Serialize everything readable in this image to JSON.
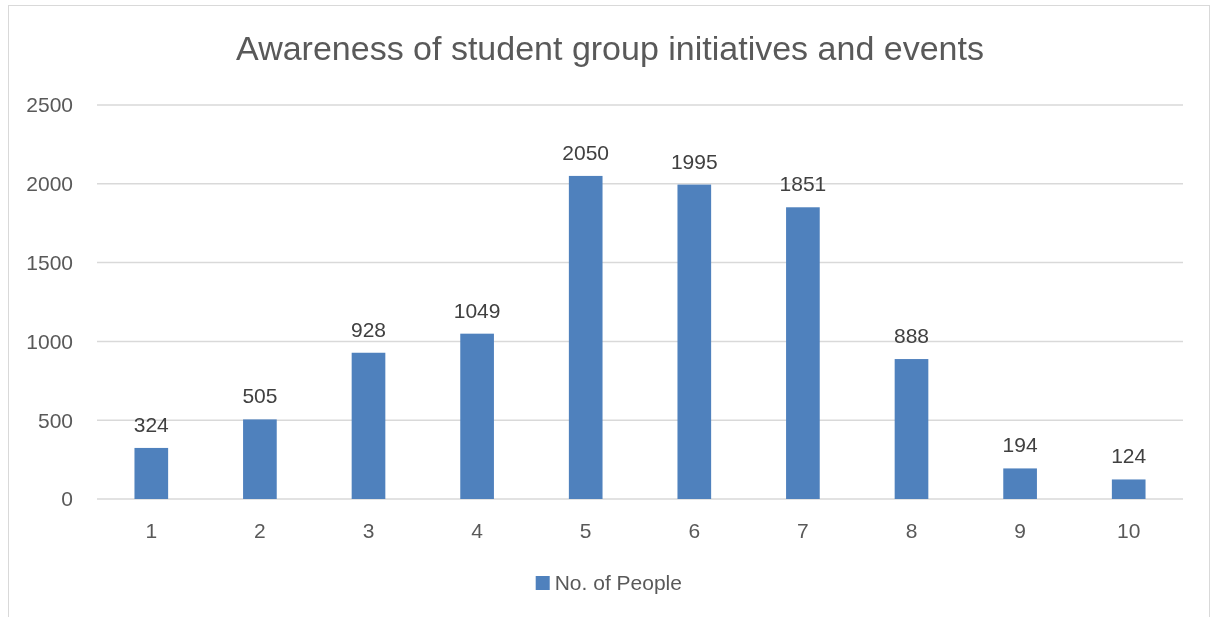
{
  "chart_data": {
    "type": "bar",
    "title": "Awareness of student group initiatives and events",
    "categories": [
      "1",
      "2",
      "3",
      "4",
      "5",
      "6",
      "7",
      "8",
      "9",
      "10"
    ],
    "series": [
      {
        "name": "No. of People",
        "color": "#4f81bd",
        "values": [
          324,
          505,
          928,
          1049,
          2050,
          1995,
          1851,
          888,
          194,
          124
        ]
      }
    ],
    "ylim": [
      0,
      2500
    ],
    "yticks": [
      0,
      500,
      1000,
      1500,
      2000,
      2500
    ],
    "grid": "y",
    "legend": "bottom",
    "data_labels": true
  }
}
